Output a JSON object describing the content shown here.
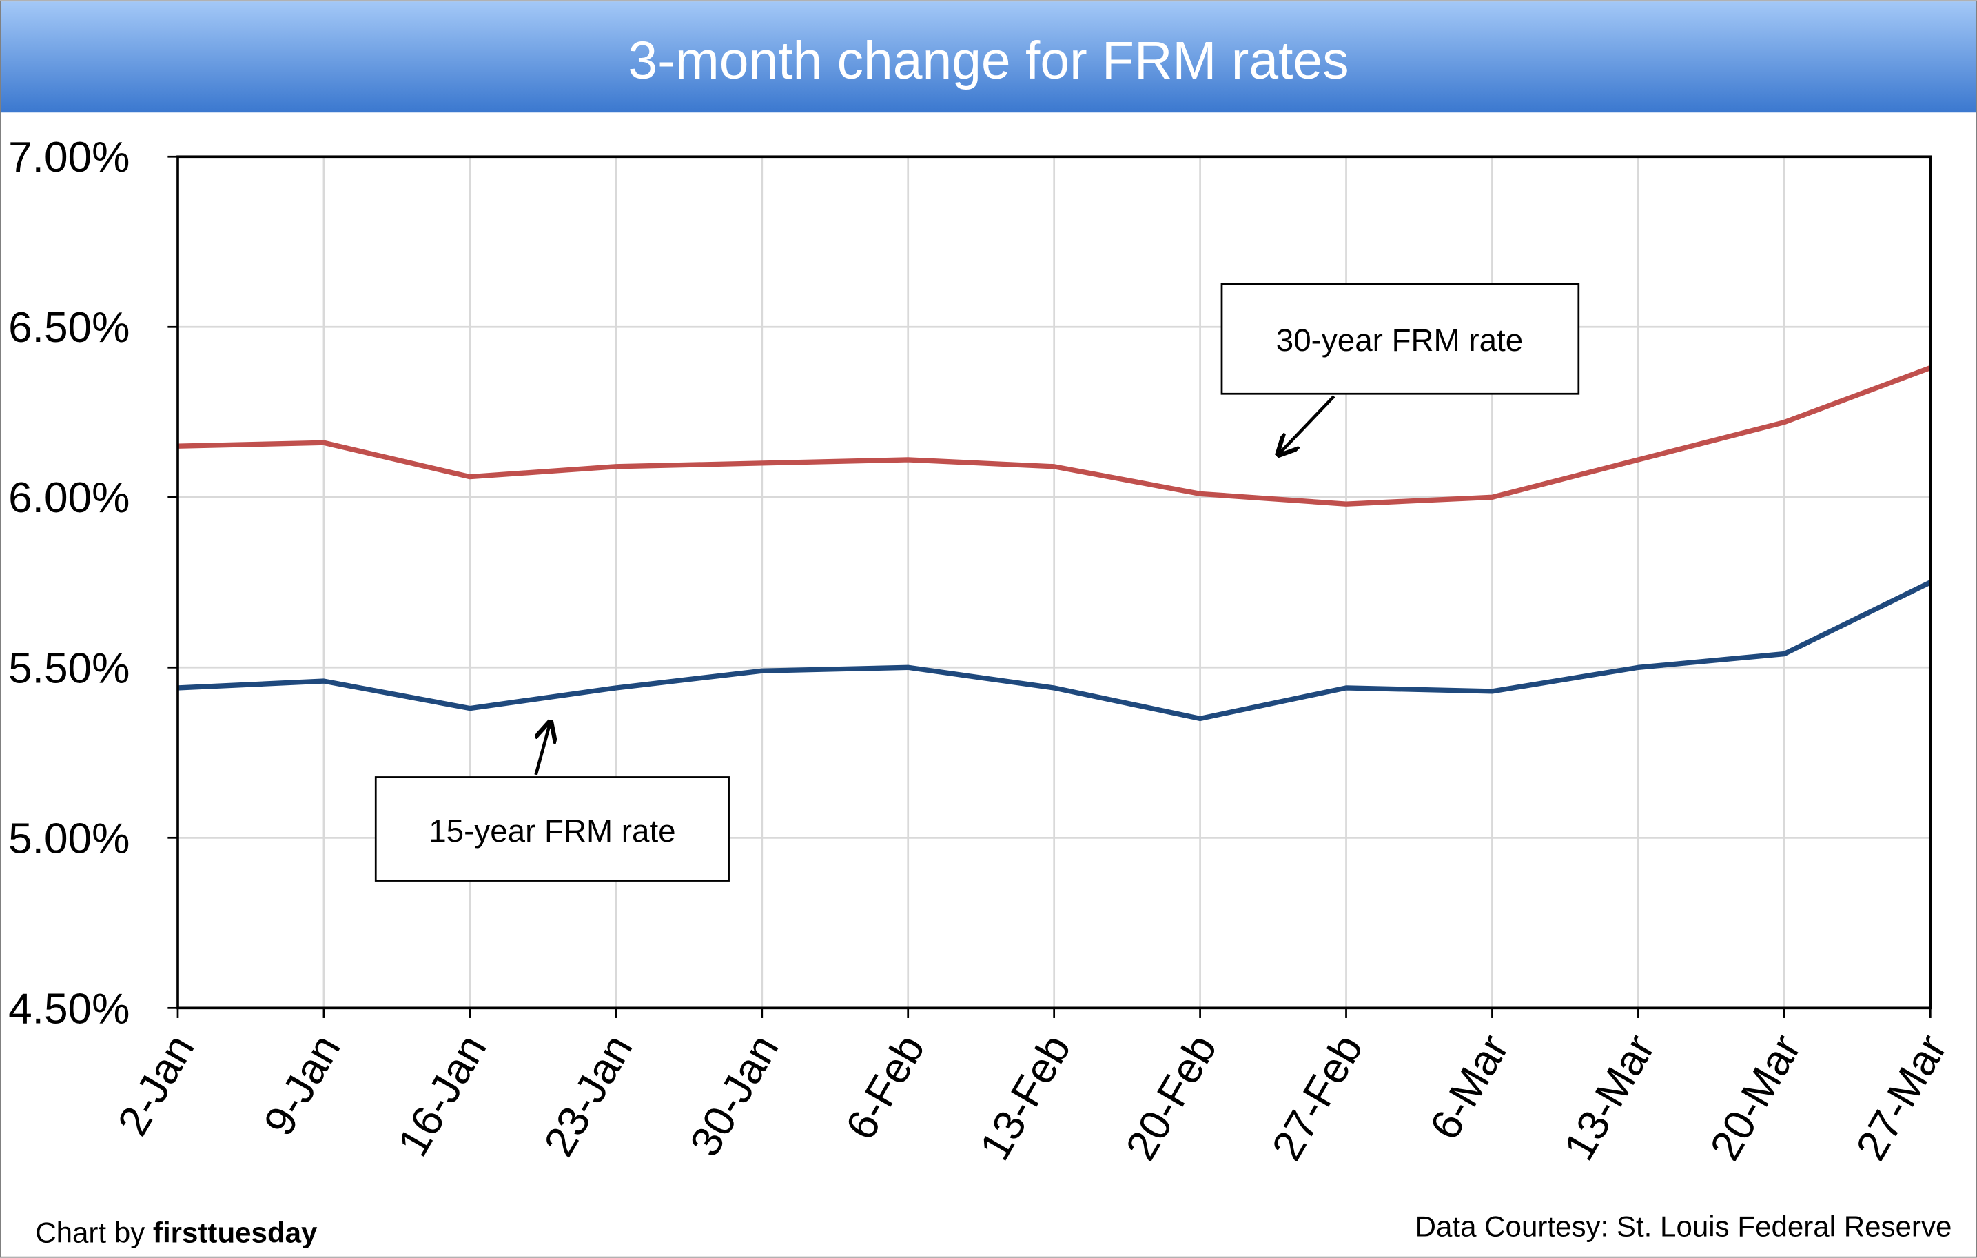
{
  "title": "3-month change for FRM rates",
  "footer": {
    "credit_prefix": "Chart by ",
    "credit_brand": "firsttuesday",
    "source": "Data Courtesy: St. Louis Federal Reserve"
  },
  "colors": {
    "title_top": "#a3c8f7",
    "title_bottom": "#3b78cf",
    "series_30": "#c0504d",
    "series_15": "#1f497d",
    "grid": "#d9d9d9"
  },
  "chart_data": {
    "type": "line",
    "title": "3-month change for FRM rates",
    "xlabel": "",
    "ylabel": "",
    "ylim": [
      4.5,
      7.0
    ],
    "yticks": [
      4.5,
      5.0,
      5.5,
      6.0,
      6.5,
      7.0
    ],
    "ytick_labels": [
      "4.50%",
      "5.00%",
      "5.50%",
      "6.00%",
      "6.50%",
      "7.00%"
    ],
    "grid": true,
    "categories": [
      "2-Jan",
      "9-Jan",
      "16-Jan",
      "23-Jan",
      "30-Jan",
      "6-Feb",
      "13-Feb",
      "20-Feb",
      "27-Feb",
      "6-Mar",
      "13-Mar",
      "20-Mar",
      "27-Mar"
    ],
    "series": [
      {
        "name": "30-year FRM rate",
        "values": [
          6.15,
          6.16,
          6.06,
          6.09,
          6.1,
          6.11,
          6.09,
          6.01,
          5.98,
          6.0,
          6.11,
          6.22,
          6.38
        ]
      },
      {
        "name": "15-year FRM rate",
        "values": [
          5.44,
          5.46,
          5.38,
          5.44,
          5.49,
          5.5,
          5.44,
          5.35,
          5.44,
          5.43,
          5.5,
          5.54,
          5.75
        ]
      }
    ],
    "annotations": [
      "30-year FRM rate",
      "15-year FRM rate"
    ]
  }
}
